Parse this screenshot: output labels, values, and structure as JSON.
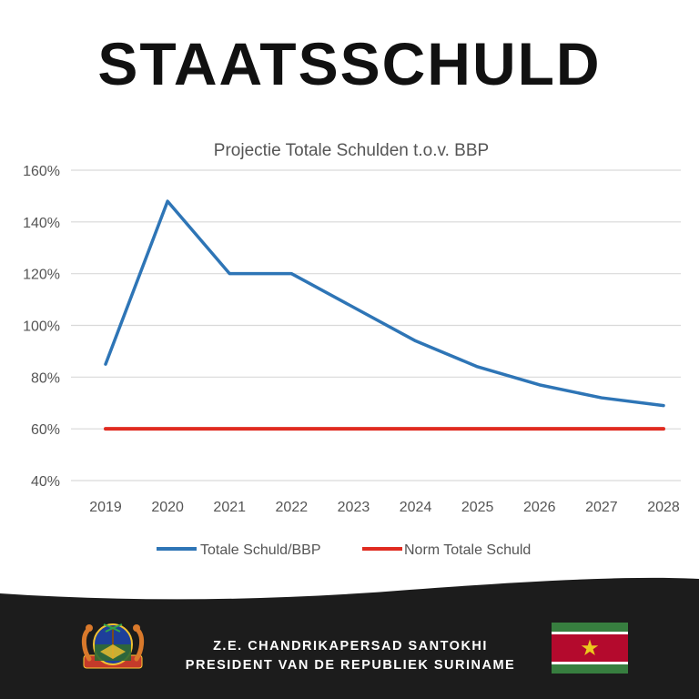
{
  "headline": "STAATSSCHULD",
  "chart_data": {
    "type": "line",
    "title": "Projectie Totale Schulden t.o.v. BBP",
    "categories": [
      "2019",
      "2020",
      "2021",
      "2022",
      "2023",
      "2024",
      "2025",
      "2026",
      "2027",
      "2028"
    ],
    "y_ticks": [
      "160%",
      "140%",
      "120%",
      "100%",
      "80%",
      "60%",
      "40%"
    ],
    "ylim": [
      40,
      160
    ],
    "y_unit": "%",
    "grid": true,
    "legend_position": "bottom",
    "series": [
      {
        "name": "Totale Schuld/BBP",
        "color": "#2e75b6",
        "values": [
          85,
          148,
          120,
          120,
          107,
          94,
          84,
          77,
          72,
          69
        ]
      },
      {
        "name": "Norm Totale Schuld",
        "color": "#e02b20",
        "values": [
          60,
          60,
          60,
          60,
          60,
          60,
          60,
          60,
          60,
          60
        ]
      }
    ]
  },
  "footer": {
    "line1": "Z.E. CHANDRIKAPERSAD SANTOKHI",
    "line2": "PRESIDENT VAN DE REPUBLIEK SURINAME",
    "background": "#1c1c1c",
    "flag_colors": {
      "green": "#377e3f",
      "white": "#ffffff",
      "red": "#b40a2d",
      "star": "#ecc81d"
    }
  }
}
